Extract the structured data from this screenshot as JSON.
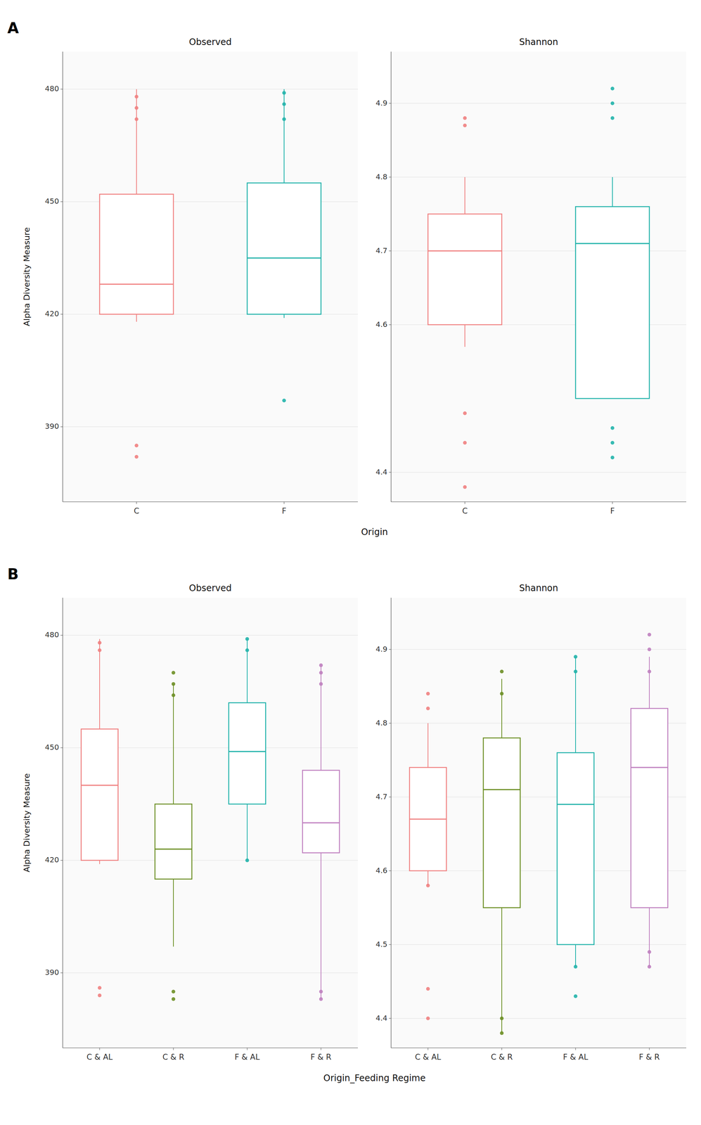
{
  "chart_data": [
    {
      "type": "box",
      "title": "Observed",
      "ylabel": "Alpha Diversity Measure",
      "xlabel": "Origin",
      "annotations": [
        "A"
      ],
      "categories": [
        "C",
        "F"
      ],
      "colors": [
        "#F08080",
        "#20B2AA"
      ],
      "values": [
        {
          "whisker_low": 418,
          "q1": 420,
          "median": 428,
          "q3": 452,
          "whisker_high": 480,
          "outliers_low": [
            382,
            385
          ],
          "outliers_high": [
            472,
            475,
            478
          ]
        },
        {
          "whisker_low": 419,
          "q1": 420,
          "median": 435,
          "q3": 455,
          "whisker_high": 480,
          "outliers_low": [
            397
          ],
          "outliers_high": [
            472,
            476,
            479
          ]
        }
      ],
      "ylim": [
        370,
        490
      ],
      "yticks": [
        390,
        420,
        450,
        480
      ],
      "grid": true
    },
    {
      "type": "box",
      "title": "Shannon",
      "categories": [
        "C",
        "F"
      ],
      "colors": [
        "#F08080",
        "#20B2AA"
      ],
      "values": [
        {
          "whisker_low": 4.57,
          "q1": 4.6,
          "median": 4.7,
          "q3": 4.75,
          "whisker_high": 4.8,
          "outliers_low": [
            4.38,
            4.44,
            4.48
          ],
          "outliers_high": [
            4.87,
            4.88
          ]
        },
        {
          "whisker_low": 4.5,
          "q1": 4.5,
          "median": 4.71,
          "q3": 4.76,
          "whisker_high": 4.8,
          "outliers_low": [
            4.42,
            4.44,
            4.46
          ],
          "outliers_high": [
            4.88,
            4.9,
            4.92
          ]
        }
      ],
      "ylim": [
        4.36,
        4.97
      ],
      "yticks": [
        4.4,
        4.6,
        4.7,
        4.8,
        4.9
      ],
      "grid": true
    },
    {
      "type": "box",
      "title": "Observed",
      "ylabel": "Alpha Diversity Measure",
      "xlabel": "Origin_Feeding Regime",
      "annotations": [
        "B"
      ],
      "categories": [
        "C & AL",
        "C & R",
        "F & AL",
        "F & R"
      ],
      "colors": [
        "#F08080",
        "#6B8E23",
        "#20B2AA",
        "#BF7FBF"
      ],
      "values": [
        {
          "whisker_low": 419,
          "q1": 420,
          "median": 440,
          "q3": 455,
          "whisker_high": 479,
          "outliers_low": [
            384,
            386
          ],
          "outliers_high": [
            476,
            478
          ]
        },
        {
          "whisker_low": 397,
          "q1": 415,
          "median": 423,
          "q3": 435,
          "whisker_high": 467,
          "outliers_low": [
            383,
            385
          ],
          "outliers_high": [
            464,
            467,
            470
          ]
        },
        {
          "whisker_low": 420,
          "q1": 435,
          "median": 449,
          "q3": 462,
          "whisker_high": 479,
          "outliers_low": [
            420
          ],
          "outliers_high": [
            476,
            479
          ]
        },
        {
          "whisker_low": 383,
          "q1": 422,
          "median": 430,
          "q3": 444,
          "whisker_high": 472,
          "outliers_low": [
            383,
            385
          ],
          "outliers_high": [
            467,
            470,
            472
          ]
        }
      ],
      "ylim": [
        370,
        490
      ],
      "yticks": [
        390,
        420,
        450,
        480
      ],
      "grid": true
    },
    {
      "type": "box",
      "title": "Shannon",
      "categories": [
        "C & AL",
        "C & R",
        "F & AL",
        "F & R"
      ],
      "colors": [
        "#F08080",
        "#6B8E23",
        "#20B2AA",
        "#BF7FBF"
      ],
      "values": [
        {
          "whisker_low": 4.58,
          "q1": 4.6,
          "median": 4.67,
          "q3": 4.74,
          "whisker_high": 4.8,
          "outliers_low": [
            4.4,
            4.44,
            4.58
          ],
          "outliers_high": [
            4.82,
            4.84
          ]
        },
        {
          "whisker_low": 4.38,
          "q1": 4.55,
          "median": 4.71,
          "q3": 4.78,
          "whisker_high": 4.86,
          "outliers_low": [
            4.38,
            4.4
          ],
          "outliers_high": [
            4.84,
            4.87
          ]
        },
        {
          "whisker_low": 4.47,
          "q1": 4.5,
          "median": 4.69,
          "q3": 4.76,
          "whisker_high": 4.89,
          "outliers_low": [
            4.43,
            4.47
          ],
          "outliers_high": [
            4.87,
            4.89
          ]
        },
        {
          "whisker_low": 4.47,
          "q1": 4.55,
          "median": 4.74,
          "q3": 4.82,
          "whisker_high": 4.89,
          "outliers_low": [
            4.47,
            4.49
          ],
          "outliers_high": [
            4.87,
            4.9,
            4.92
          ]
        }
      ],
      "ylim": [
        4.36,
        4.97
      ],
      "yticks": [
        4.4,
        4.5,
        4.6,
        4.7,
        4.8,
        4.9
      ],
      "grid": true
    }
  ]
}
